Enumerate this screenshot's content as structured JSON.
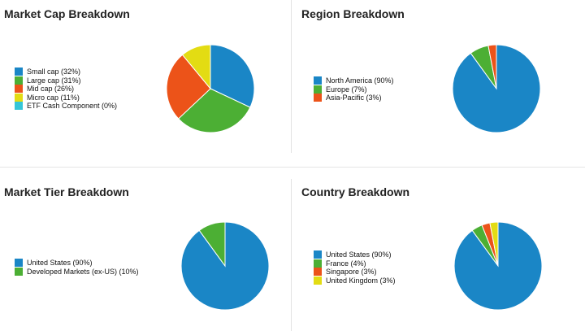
{
  "chart_data": [
    {
      "type": "pie",
      "title": "Market Cap Breakdown",
      "legend": "left",
      "slices": [
        {
          "label": "Small cap (32%)",
          "value": 32,
          "color": "#1a86c6"
        },
        {
          "label": "Large cap (31%)",
          "value": 31,
          "color": "#4caf34"
        },
        {
          "label": "Mid cap (26%)",
          "value": 26,
          "color": "#ec5319"
        },
        {
          "label": "Micro cap (11%)",
          "value": 11,
          "color": "#e3dc13"
        },
        {
          "label": "ETF Cash Component (0%)",
          "value": 0,
          "color": "#35c6d8"
        }
      ]
    },
    {
      "type": "pie",
      "title": "Region Breakdown",
      "legend": "left",
      "slices": [
        {
          "label": "North America (90%)",
          "value": 90,
          "color": "#1a86c6"
        },
        {
          "label": "Europe (7%)",
          "value": 7,
          "color": "#4caf34"
        },
        {
          "label": "Asia-Pacific (3%)",
          "value": 3,
          "color": "#ec5319"
        }
      ]
    },
    {
      "type": "pie",
      "title": "Market Tier Breakdown",
      "legend": "left",
      "slices": [
        {
          "label": "United States (90%)",
          "value": 90,
          "color": "#1a86c6"
        },
        {
          "label": "Developed Markets (ex-US) (10%)",
          "value": 10,
          "color": "#4caf34"
        }
      ]
    },
    {
      "type": "pie",
      "title": "Country Breakdown",
      "legend": "left",
      "slices": [
        {
          "label": "United States (90%)",
          "value": 90,
          "color": "#1a86c6"
        },
        {
          "label": "France (4%)",
          "value": 4,
          "color": "#4caf34"
        },
        {
          "label": "Singapore (3%)",
          "value": 3,
          "color": "#ec5319"
        },
        {
          "label": "United Kingdom (3%)",
          "value": 3,
          "color": "#e3dc13"
        }
      ]
    }
  ]
}
